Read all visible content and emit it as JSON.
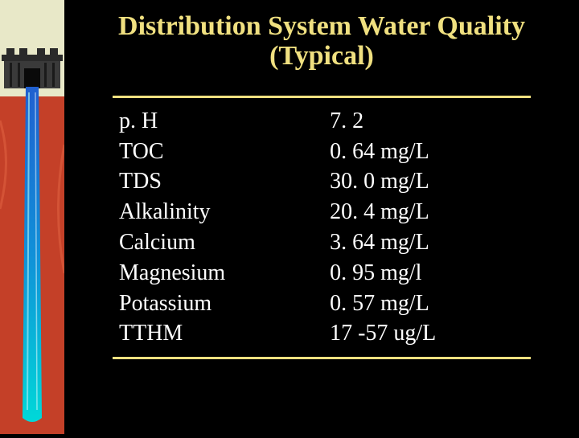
{
  "title": {
    "line1": "Distribution System Water Quality",
    "line2": "(Typical)",
    "fontsize": 34,
    "color": "#f0e080"
  },
  "table": {
    "rule_color": "#f0e080",
    "text_color": "#ffffff",
    "fontsize": 28,
    "rows": [
      {
        "param": "p. H",
        "value": "7. 2"
      },
      {
        "param": "TOC",
        "value": "0. 64 mg/L"
      },
      {
        "param": "TDS",
        "value": "30. 0 mg/L"
      },
      {
        "param": "Alkalinity",
        "value": "20. 4 mg/L"
      },
      {
        "param": "Calcium",
        "value": "3. 64 mg/L"
      },
      {
        "param": "Magnesium",
        "value": "0. 95 mg/l"
      },
      {
        "param": "Potassium",
        "value": "0. 57 mg/L"
      },
      {
        "param": "TTHM",
        "value": "17 -57 ug/L"
      }
    ]
  },
  "background_color": "#000000",
  "sidebar": {
    "sky_color": "#e8e8c8",
    "ground_color": "#c44028",
    "dam_color": "#3a3a3a",
    "water_top_color": "#2060d0",
    "water_bottom_color": "#00d8d8"
  }
}
